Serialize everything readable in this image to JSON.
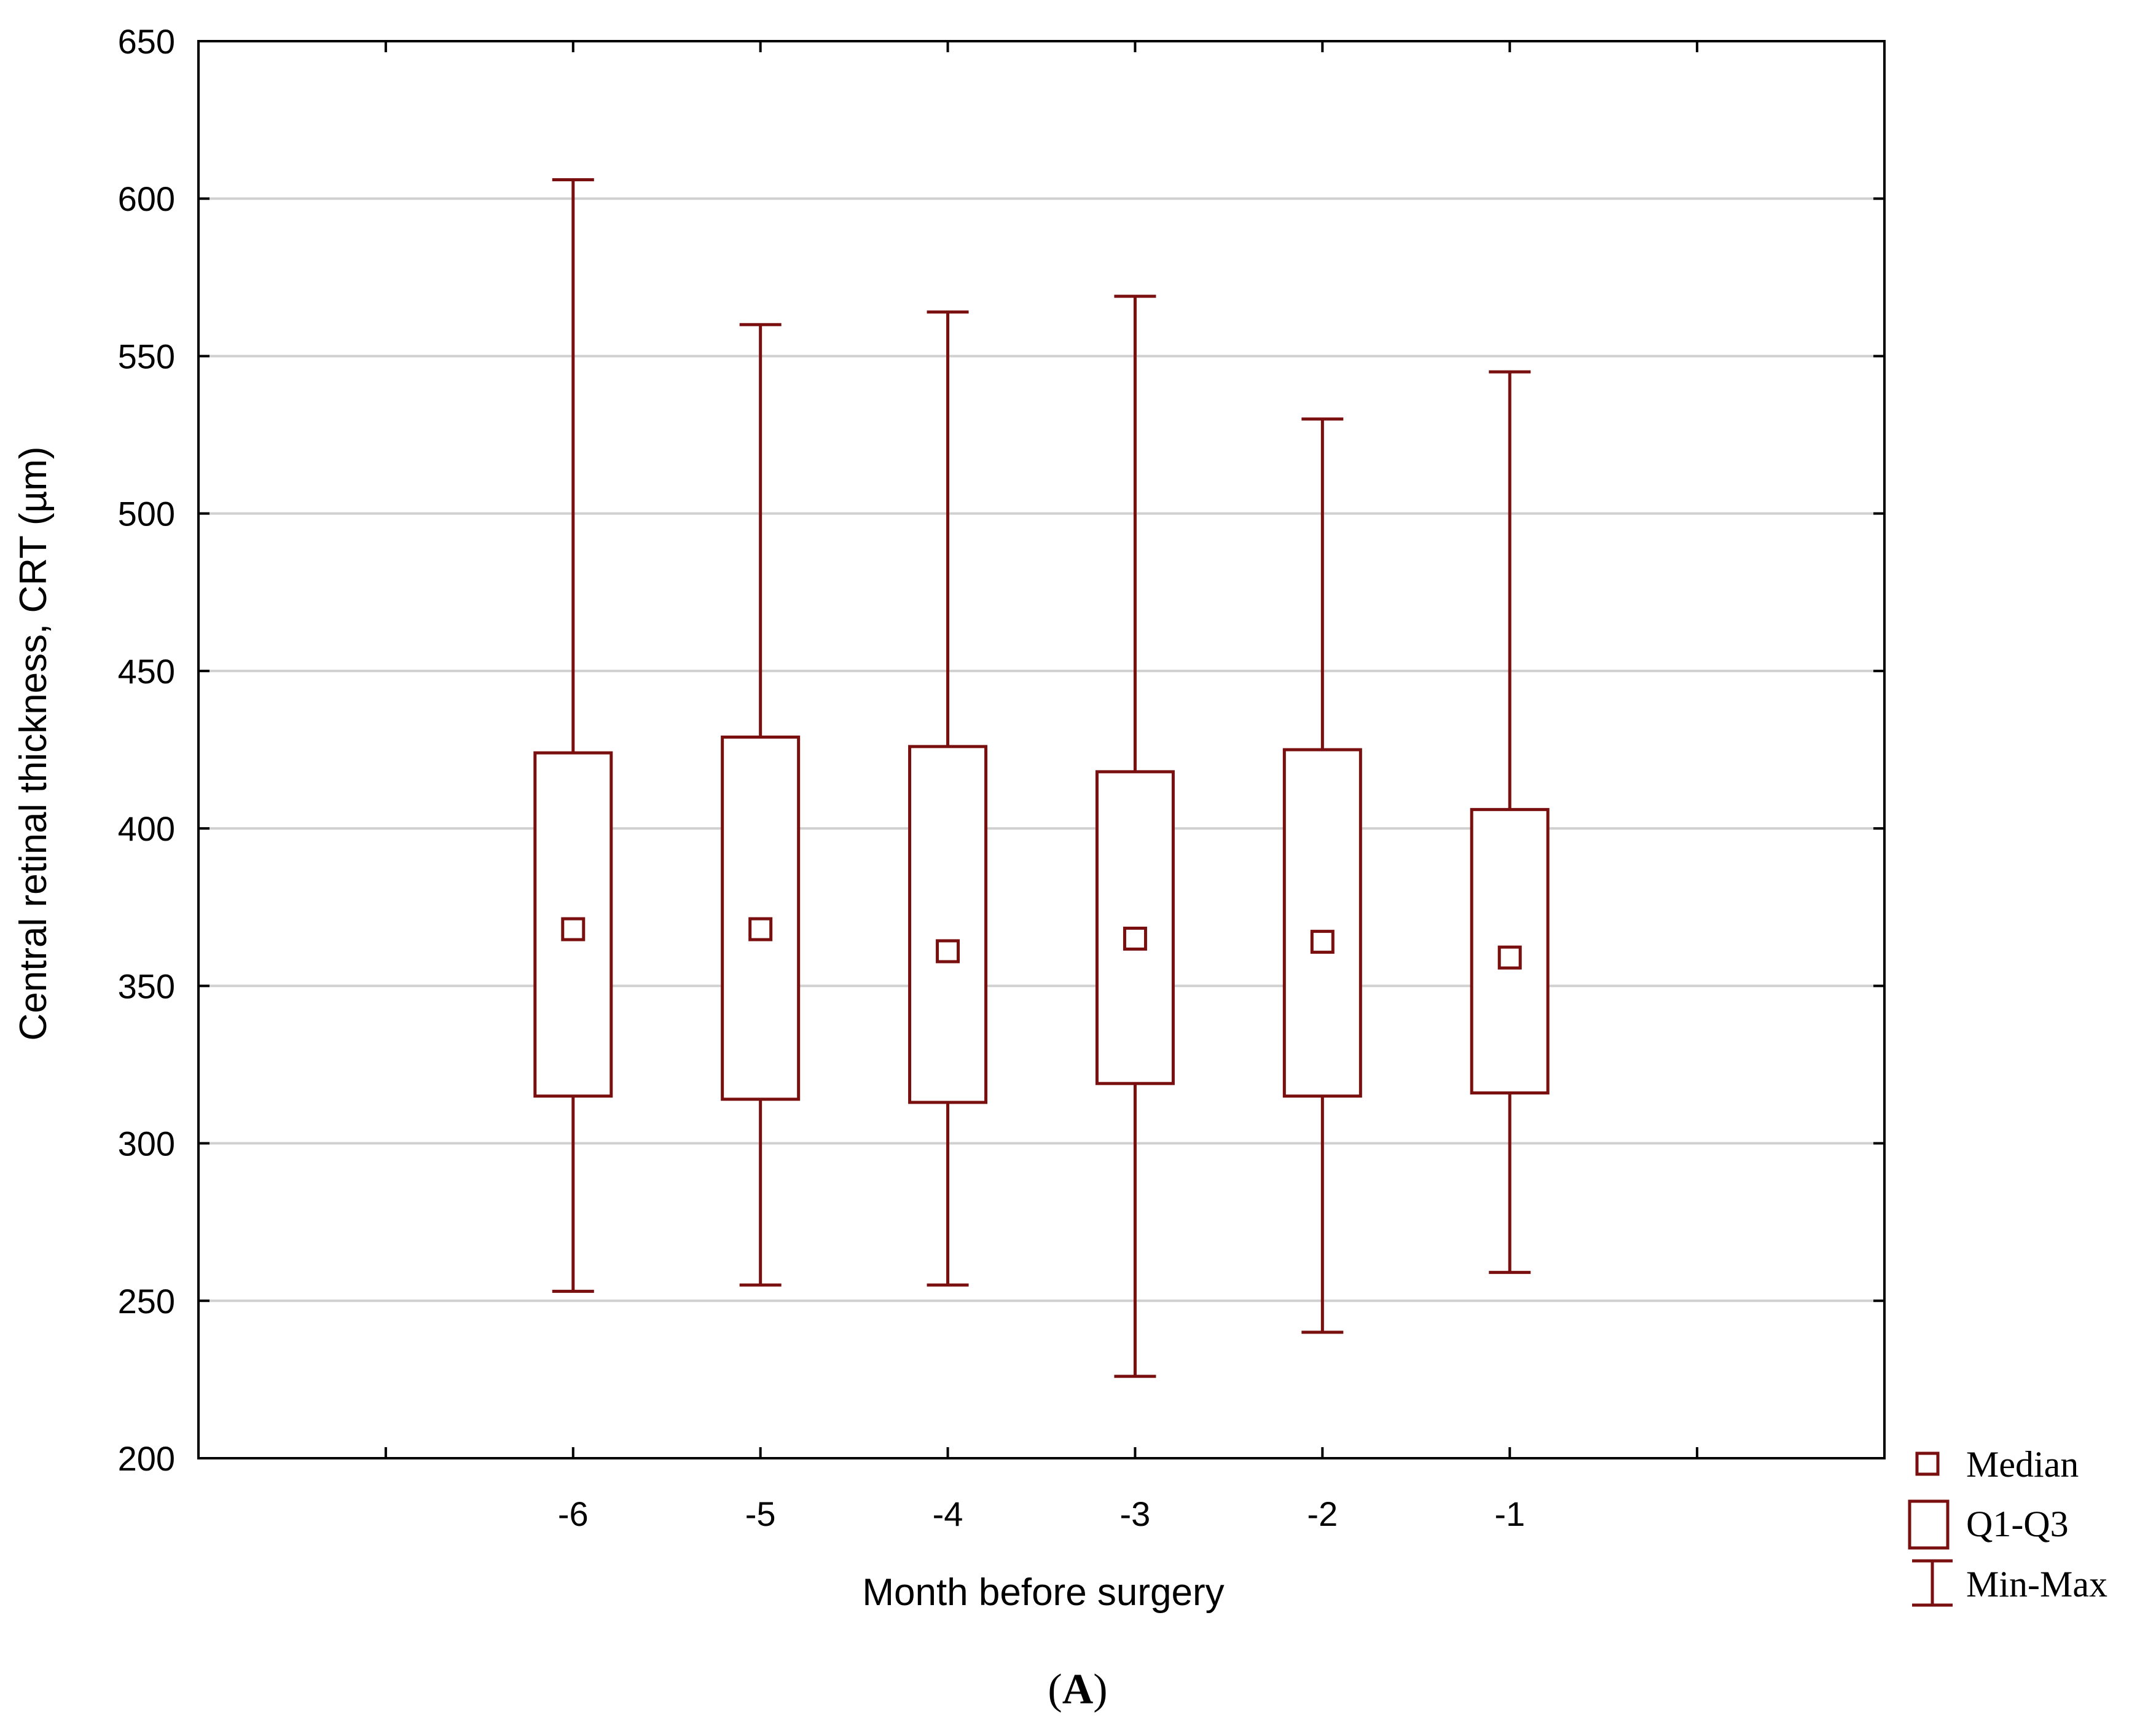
{
  "chart_data": {
    "type": "boxplot",
    "title": "",
    "xlabel": "Month before surgery",
    "ylabel": "Central retinal thickness, CRT (µm)",
    "ylim": [
      200,
      650
    ],
    "yticks": [
      200,
      250,
      300,
      350,
      400,
      450,
      500,
      550,
      600,
      650
    ],
    "grid": true,
    "categories": [
      "-6",
      "-5",
      "-4",
      "-3",
      "-2",
      "-1"
    ],
    "series": [
      {
        "name": "-6",
        "min": 253,
        "q1": 315,
        "median": 368,
        "q3": 424,
        "max": 606
      },
      {
        "name": "-5",
        "min": 255,
        "q1": 314,
        "median": 368,
        "q3": 429,
        "max": 560
      },
      {
        "name": "-4",
        "min": 255,
        "q1": 313,
        "median": 361,
        "q3": 426,
        "max": 564
      },
      {
        "name": "-3",
        "min": 226,
        "q1": 319,
        "median": 365,
        "q3": 418,
        "max": 569
      },
      {
        "name": "-2",
        "min": 240,
        "q1": 315,
        "median": 364,
        "q3": 425,
        "max": 530
      },
      {
        "name": "-1",
        "min": 259,
        "q1": 316,
        "median": 359,
        "q3": 406,
        "max": 545
      }
    ],
    "legend": {
      "position": "bottom-right",
      "entries": [
        "Median",
        "Q1-Q3",
        "Min-Max"
      ]
    },
    "panel_label": {
      "open": "(",
      "letter": "A",
      "close": ")"
    },
    "colors": {
      "series": "#7a0f0f",
      "grid": "#d0d0d0",
      "axis": "#000000"
    }
  }
}
